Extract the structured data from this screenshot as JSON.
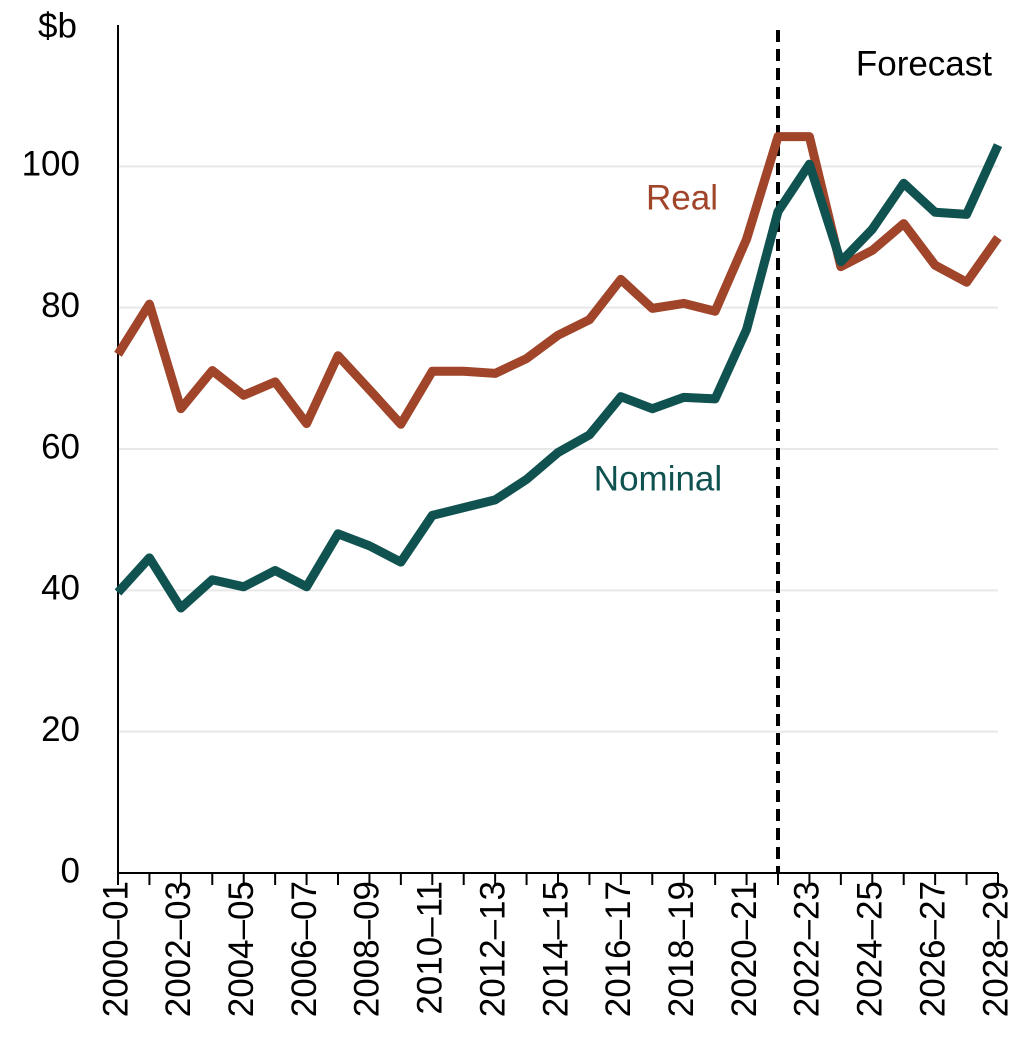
{
  "chart_data": {
    "type": "line",
    "y_label": "$b",
    "categories": [
      "2000–01",
      null,
      "2002–03",
      null,
      "2004–05",
      null,
      "2006–07",
      null,
      "2008–09",
      null,
      "2010–11",
      null,
      "2012–13",
      null,
      "2014–15",
      null,
      "2016–17",
      null,
      "2018–19",
      null,
      "2020–21",
      null,
      "2022–23",
      null,
      "2024–25",
      null,
      "2026–27",
      null,
      "2028–29"
    ],
    "series": [
      {
        "name": "Real",
        "color": "#a0442a",
        "values": [
          73.4,
          80.5,
          65.7,
          71.1,
          67.6,
          69.5,
          63.6,
          73.2,
          68.4,
          63.5,
          71.0,
          71.0,
          70.7,
          72.8,
          76.1,
          78.3,
          84.0,
          79.9,
          80.6,
          79.5,
          89.7,
          104.2,
          104.2,
          85.8,
          88.1,
          91.9,
          86.0,
          83.6,
          89.9
        ]
      },
      {
        "name": "Nominal",
        "color": "#0f5250",
        "values": [
          39.7,
          44.6,
          37.5,
          41.5,
          40.5,
          42.8,
          40.5,
          48.0,
          46.3,
          44.0,
          50.6,
          51.7,
          52.8,
          55.7,
          59.5,
          62.0,
          67.4,
          65.7,
          67.3,
          67.1,
          76.9,
          93.6,
          100.3,
          86.5,
          91.1,
          97.6,
          93.5,
          93.2,
          103.0
        ]
      }
    ],
    "ylim": [
      0,
      120
    ],
    "yticks": [
      0,
      20,
      40,
      60,
      80,
      100
    ],
    "grid": true,
    "forecast": {
      "label": "Forecast",
      "start_index": 21
    }
  }
}
